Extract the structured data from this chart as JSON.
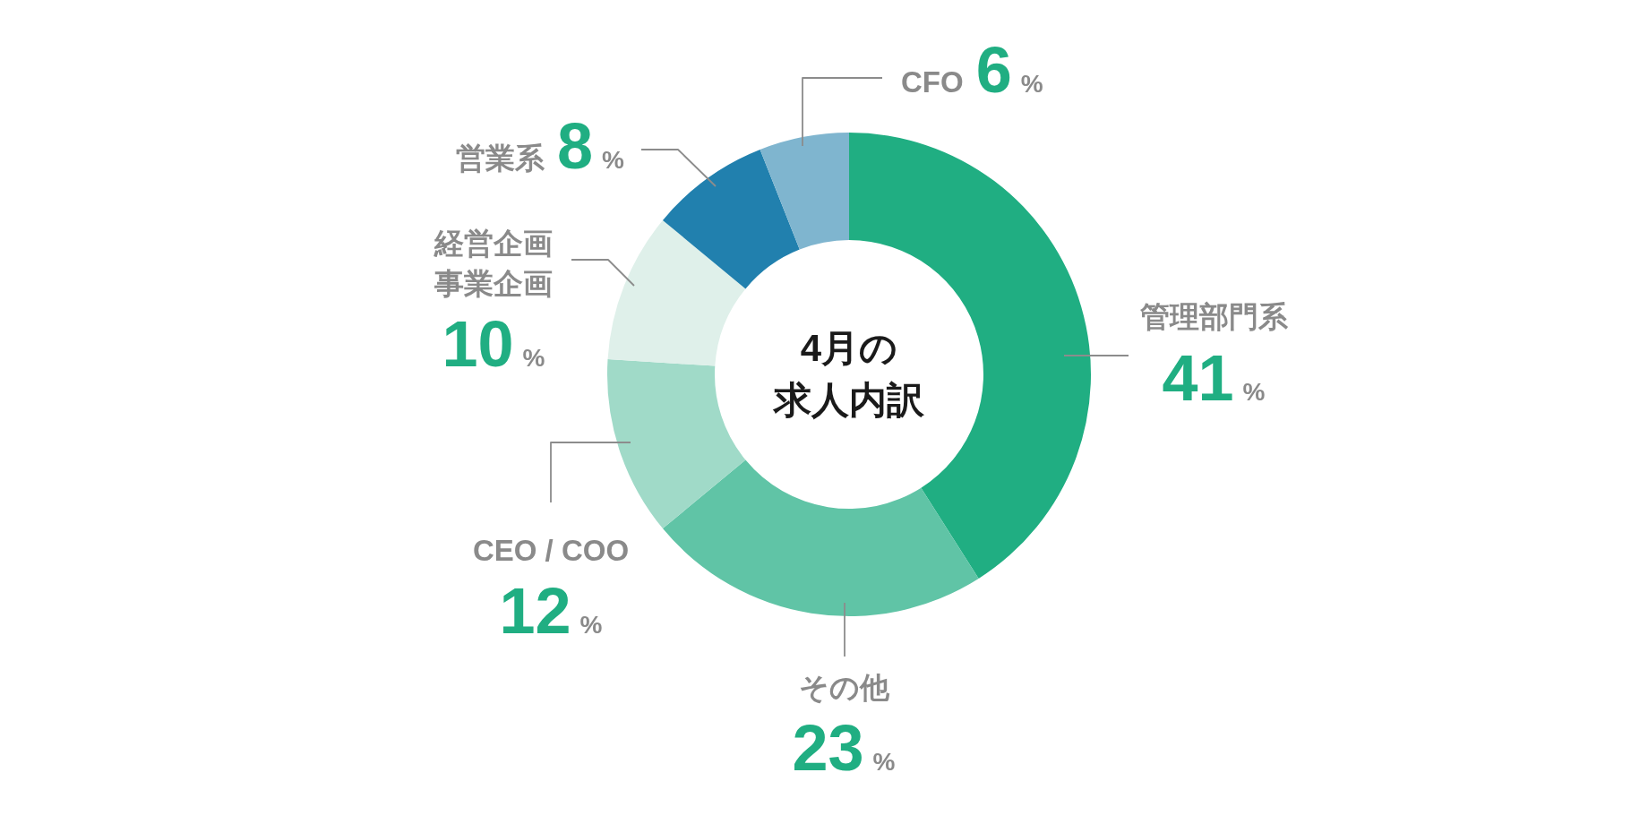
{
  "chart_data": {
    "type": "donut",
    "title": "4月の求人内訳",
    "categories": [
      "管理部門系",
      "その他",
      "CEO / COO",
      "経営企画事業企画",
      "営業系",
      "CFO"
    ],
    "values": [
      41,
      23,
      12,
      10,
      8,
      6
    ],
    "colors": [
      "#20ae82",
      "#60c4a6",
      "#a0dac8",
      "#dff0ea",
      "#2180ae",
      "#7fb5cf"
    ],
    "value_labels": [
      "41%",
      "23%",
      "12%",
      "10%",
      "8%",
      "6%"
    ]
  }
}
